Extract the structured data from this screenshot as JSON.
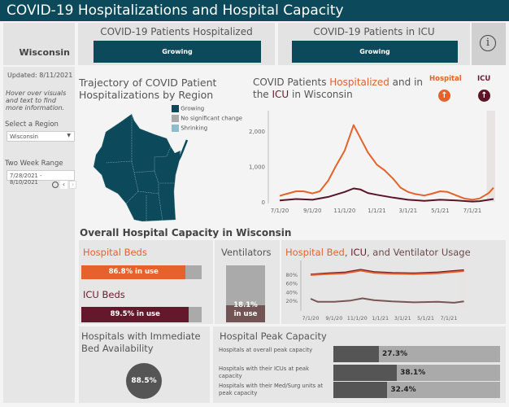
{
  "title": "COVID-19 Hospitalizations and Hospital Capacity",
  "header": {
    "region": "Wisconsin",
    "hospitalized": {
      "label": "COVID-19 Patients Hospitalized",
      "status": "Growing"
    },
    "icu": {
      "label": "COVID-19 Patients in ICU",
      "status": "Growing"
    },
    "info_icon": "info-icon"
  },
  "sidebar": {
    "updated": "Updated: 8/11/2021",
    "hint": "Hover over visuals and text to find more information.",
    "region_label": "Select a Region",
    "region_value": "Wisconsin",
    "range_label": "Two Week Range",
    "range_value": "7/28/2021 - 8/10/2021"
  },
  "map": {
    "title": "Trajectory of COVID Patient Hospitalizations by Region",
    "legend": [
      {
        "label": "Growing",
        "color": "#0c4a5b"
      },
      {
        "label": "No significant change",
        "color": "#aaaaaa"
      },
      {
        "label": "Shrinking",
        "color": "#8dbdcc"
      }
    ]
  },
  "trend": {
    "title_a": "COVID Patients ",
    "title_b": "Hospitalized",
    "title_c": " and in the ",
    "title_d": "ICU",
    "title_e": " in Wisconsin",
    "hospital_label": "Hospital",
    "icu_label": "ICU",
    "hospital_icon": "arrow-up-icon",
    "icu_icon": "arrow-up-icon",
    "colors": {
      "hospital": "#e5622a",
      "icu": "#5a1426"
    }
  },
  "chart_data": [
    {
      "type": "line",
      "title": "COVID Patients Hospitalized and in the ICU in Wisconsin",
      "x_ticks": [
        "7/1/20",
        "9/1/20",
        "11/1/20",
        "1/1/21",
        "3/1/21",
        "5/1/21",
        "7/1/21"
      ],
      "y_ticks": [
        "0",
        "1,000",
        "2,000"
      ],
      "ylim": [
        0,
        2300
      ],
      "series": [
        {
          "name": "Hospital",
          "points": [
            [
              "2020-07-01",
              170
            ],
            [
              "2020-07-15",
              230
            ],
            [
              "2020-08-01",
              300
            ],
            [
              "2020-08-15",
              300
            ],
            [
              "2020-09-01",
              240
            ],
            [
              "2020-09-15",
              300
            ],
            [
              "2020-10-01",
              600
            ],
            [
              "2020-10-15",
              1000
            ],
            [
              "2020-11-01",
              1450
            ],
            [
              "2020-11-18",
              2170
            ],
            [
              "2020-12-01",
              1800
            ],
            [
              "2020-12-15",
              1400
            ],
            [
              "2021-01-01",
              1050
            ],
            [
              "2021-01-15",
              900
            ],
            [
              "2021-02-01",
              650
            ],
            [
              "2021-02-15",
              400
            ],
            [
              "2021-03-01",
              280
            ],
            [
              "2021-03-15",
              220
            ],
            [
              "2021-04-01",
              180
            ],
            [
              "2021-04-15",
              230
            ],
            [
              "2021-05-01",
              300
            ],
            [
              "2021-05-15",
              280
            ],
            [
              "2021-06-01",
              180
            ],
            [
              "2021-06-15",
              100
            ],
            [
              "2021-07-01",
              60
            ],
            [
              "2021-07-15",
              100
            ],
            [
              "2021-08-01",
              250
            ],
            [
              "2021-08-10",
              400
            ]
          ]
        },
        {
          "name": "ICU",
          "points": [
            [
              "2020-07-01",
              40
            ],
            [
              "2020-08-01",
              80
            ],
            [
              "2020-09-01",
              60
            ],
            [
              "2020-10-01",
              140
            ],
            [
              "2020-11-01",
              280
            ],
            [
              "2020-11-18",
              380
            ],
            [
              "2020-12-01",
              350
            ],
            [
              "2020-12-15",
              250
            ],
            [
              "2021-01-01",
              200
            ],
            [
              "2021-02-01",
              120
            ],
            [
              "2021-03-01",
              60
            ],
            [
              "2021-04-01",
              30
            ],
            [
              "2021-05-01",
              60
            ],
            [
              "2021-06-01",
              40
            ],
            [
              "2021-07-01",
              10
            ],
            [
              "2021-07-15",
              20
            ],
            [
              "2021-08-10",
              80
            ]
          ]
        }
      ]
    },
    {
      "type": "line",
      "title": "Hospital Bed, ICU, and Ventilator Usage",
      "x_ticks": [
        "7/1/20",
        "9/1/20",
        "11/1/20",
        "1/1/21",
        "3/1/21",
        "5/1/21",
        "7/1/21"
      ],
      "y_ticks": [
        "20%",
        "40%",
        "60%",
        "80%"
      ],
      "ylim": [
        0,
        100
      ],
      "series": [
        {
          "name": "ICU",
          "color": "#6b1a2d",
          "points": [
            [
              "2020-07-01",
              79
            ],
            [
              "2020-08-15",
              82
            ],
            [
              "2020-10-01",
              84
            ],
            [
              "2020-11-10",
              90
            ],
            [
              "2020-12-15",
              85
            ],
            [
              "2021-02-01",
              83
            ],
            [
              "2021-04-01",
              82
            ],
            [
              "2021-06-01",
              84
            ],
            [
              "2021-08-10",
              89
            ]
          ]
        },
        {
          "name": "Hospital Bed",
          "color": "#e5622a",
          "points": [
            [
              "2020-07-01",
              78
            ],
            [
              "2020-08-15",
              80
            ],
            [
              "2020-10-01",
              82
            ],
            [
              "2020-11-10",
              88
            ],
            [
              "2020-12-15",
              83
            ],
            [
              "2021-02-01",
              81
            ],
            [
              "2021-04-01",
              80
            ],
            [
              "2021-06-01",
              82
            ],
            [
              "2021-08-10",
              87
            ]
          ]
        },
        {
          "name": "Ventilator",
          "color": "#7a5555",
          "points": [
            [
              "2020-07-01",
              24
            ],
            [
              "2020-07-20",
              17
            ],
            [
              "2020-09-01",
              17
            ],
            [
              "2020-10-15",
              20
            ],
            [
              "2020-11-15",
              25
            ],
            [
              "2020-12-15",
              21
            ],
            [
              "2021-02-01",
              18
            ],
            [
              "2021-04-01",
              16
            ],
            [
              "2021-06-01",
              17
            ],
            [
              "2021-07-15",
              15
            ],
            [
              "2021-08-10",
              18
            ]
          ]
        }
      ]
    }
  ],
  "capacity": {
    "section_title": "Overall Hospital Capacity in Wisconsin",
    "hospital_beds": {
      "label": "Hospital Beds",
      "value": 86.8,
      "text": "86.8% in use"
    },
    "icu_beds": {
      "label": "ICU Beds",
      "value": 89.5,
      "text": "89.5% in use"
    },
    "ventilators": {
      "label": "Ventilators",
      "value": 18.1,
      "text_a": "18.1%",
      "text_b": "in use"
    },
    "usage_title_a": "Hospital Bed",
    "usage_title_b": ", ",
    "usage_title_c": "ICU",
    "usage_title_d": ", and Ventilator Usage"
  },
  "availability": {
    "title": "Hospitals with Immediate Bed Availability",
    "value": "88.5%"
  },
  "peak": {
    "title": "Hospital Peak Capacity",
    "rows": [
      {
        "label": "Hospitals at overall peak capacity",
        "value": 27.3,
        "text": "27.3%"
      },
      {
        "label": "Hospitals with their ICUs at peak capacity",
        "value": 38.1,
        "text": "38.1%"
      },
      {
        "label": "Hospitals with their Med/Surg units at peak capacity",
        "value": 32.4,
        "text": "32.4%"
      }
    ]
  }
}
